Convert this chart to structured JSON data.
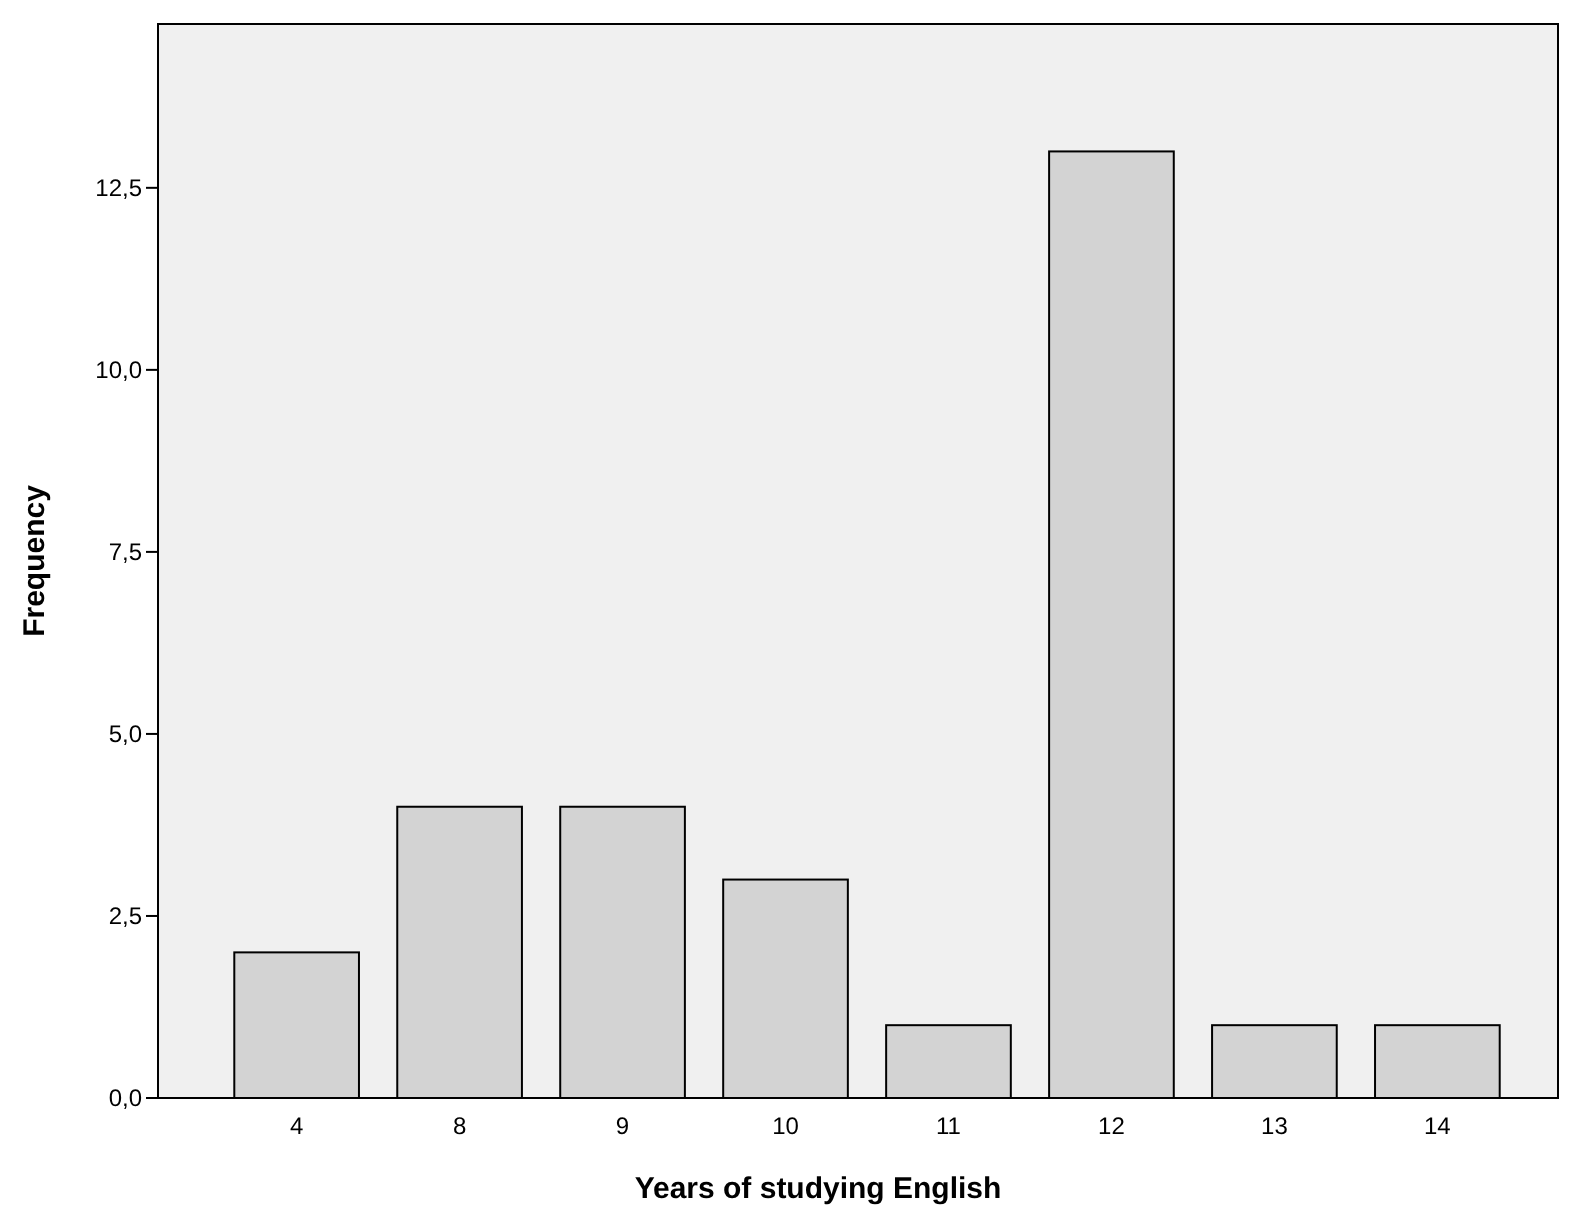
{
  "chart_data": {
    "type": "bar",
    "xlabel": "Years of studying English",
    "ylabel": "Frequency",
    "categories": [
      "4",
      "8",
      "9",
      "10",
      "11",
      "12",
      "13",
      "14"
    ],
    "values": [
      2,
      4,
      4,
      3,
      1,
      13,
      1,
      1
    ],
    "color": "#d3d3d3",
    "ylim": [
      0,
      14.75
    ],
    "yticks": [
      {
        "value": 0,
        "label": "0,0"
      },
      {
        "value": 2.5,
        "label": "2,5"
      },
      {
        "value": 5,
        "label": "5,0"
      },
      {
        "value": 7.5,
        "label": "7,5"
      },
      {
        "value": 10,
        "label": "10,0"
      },
      {
        "value": 12.5,
        "label": "12,5"
      }
    ],
    "grid": false
  }
}
